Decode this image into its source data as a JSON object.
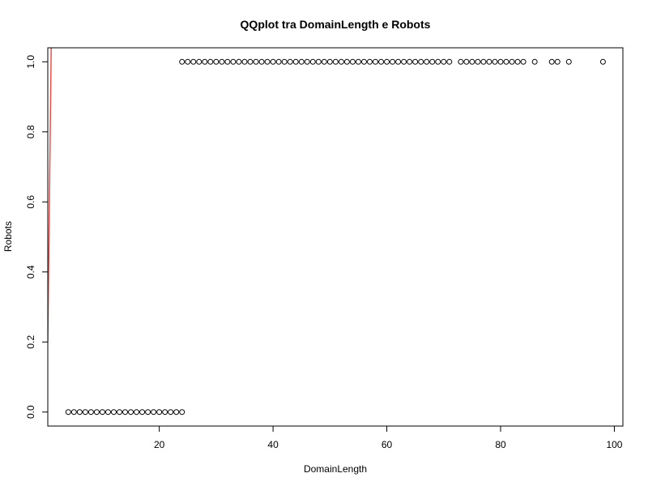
{
  "chart_data": {
    "type": "scatter",
    "title": "QQplot tra DomainLength e Robots",
    "xlabel": "DomainLength",
    "ylabel": "Robots",
    "xlim": [
      0.4,
      101.5
    ],
    "ylim": [
      -0.04,
      1.04
    ],
    "x_ticks": [
      20,
      40,
      60,
      80,
      100
    ],
    "x_tick_labels": [
      "20",
      "40",
      "60",
      "80",
      "100"
    ],
    "y_ticks": [
      0.0,
      0.2,
      0.4,
      0.6,
      0.8,
      1.0
    ],
    "y_tick_labels": [
      "0.0",
      "0.2",
      "0.4",
      "0.6",
      "0.8",
      "1.0"
    ],
    "grid": false,
    "legend": "none",
    "series": [
      {
        "marker": "open-circle",
        "color": "#000000",
        "points": [
          {
            "x": 4,
            "y": 0
          },
          {
            "x": 5,
            "y": 0
          },
          {
            "x": 6,
            "y": 0
          },
          {
            "x": 7,
            "y": 0
          },
          {
            "x": 8,
            "y": 0
          },
          {
            "x": 9,
            "y": 0
          },
          {
            "x": 10,
            "y": 0
          },
          {
            "x": 11,
            "y": 0
          },
          {
            "x": 12,
            "y": 0
          },
          {
            "x": 13,
            "y": 0
          },
          {
            "x": 14,
            "y": 0
          },
          {
            "x": 15,
            "y": 0
          },
          {
            "x": 16,
            "y": 0
          },
          {
            "x": 17,
            "y": 0
          },
          {
            "x": 18,
            "y": 0
          },
          {
            "x": 19,
            "y": 0
          },
          {
            "x": 20,
            "y": 0
          },
          {
            "x": 21,
            "y": 0
          },
          {
            "x": 22,
            "y": 0
          },
          {
            "x": 23,
            "y": 0
          },
          {
            "x": 24,
            "y": 0
          },
          {
            "x": 24,
            "y": 1
          },
          {
            "x": 25,
            "y": 1
          },
          {
            "x": 26,
            "y": 1
          },
          {
            "x": 27,
            "y": 1
          },
          {
            "x": 28,
            "y": 1
          },
          {
            "x": 29,
            "y": 1
          },
          {
            "x": 30,
            "y": 1
          },
          {
            "x": 31,
            "y": 1
          },
          {
            "x": 32,
            "y": 1
          },
          {
            "x": 33,
            "y": 1
          },
          {
            "x": 34,
            "y": 1
          },
          {
            "x": 35,
            "y": 1
          },
          {
            "x": 36,
            "y": 1
          },
          {
            "x": 37,
            "y": 1
          },
          {
            "x": 38,
            "y": 1
          },
          {
            "x": 39,
            "y": 1
          },
          {
            "x": 40,
            "y": 1
          },
          {
            "x": 41,
            "y": 1
          },
          {
            "x": 42,
            "y": 1
          },
          {
            "x": 43,
            "y": 1
          },
          {
            "x": 44,
            "y": 1
          },
          {
            "x": 45,
            "y": 1
          },
          {
            "x": 46,
            "y": 1
          },
          {
            "x": 47,
            "y": 1
          },
          {
            "x": 48,
            "y": 1
          },
          {
            "x": 49,
            "y": 1
          },
          {
            "x": 50,
            "y": 1
          },
          {
            "x": 51,
            "y": 1
          },
          {
            "x": 52,
            "y": 1
          },
          {
            "x": 53,
            "y": 1
          },
          {
            "x": 54,
            "y": 1
          },
          {
            "x": 55,
            "y": 1
          },
          {
            "x": 56,
            "y": 1
          },
          {
            "x": 57,
            "y": 1
          },
          {
            "x": 58,
            "y": 1
          },
          {
            "x": 59,
            "y": 1
          },
          {
            "x": 60,
            "y": 1
          },
          {
            "x": 61,
            "y": 1
          },
          {
            "x": 62,
            "y": 1
          },
          {
            "x": 63,
            "y": 1
          },
          {
            "x": 64,
            "y": 1
          },
          {
            "x": 65,
            "y": 1
          },
          {
            "x": 66,
            "y": 1
          },
          {
            "x": 67,
            "y": 1
          },
          {
            "x": 68,
            "y": 1
          },
          {
            "x": 69,
            "y": 1
          },
          {
            "x": 70,
            "y": 1
          },
          {
            "x": 71,
            "y": 1
          },
          {
            "x": 73,
            "y": 1
          },
          {
            "x": 74,
            "y": 1
          },
          {
            "x": 75,
            "y": 1
          },
          {
            "x": 76,
            "y": 1
          },
          {
            "x": 77,
            "y": 1
          },
          {
            "x": 78,
            "y": 1
          },
          {
            "x": 79,
            "y": 1
          },
          {
            "x": 80,
            "y": 1
          },
          {
            "x": 81,
            "y": 1
          },
          {
            "x": 82,
            "y": 1
          },
          {
            "x": 83,
            "y": 1
          },
          {
            "x": 84,
            "y": 1
          },
          {
            "x": 86,
            "y": 1
          },
          {
            "x": 89,
            "y": 1
          },
          {
            "x": 90,
            "y": 1
          },
          {
            "x": 92,
            "y": 1
          },
          {
            "x": 98,
            "y": 1
          }
        ]
      }
    ],
    "reference_line": {
      "color": "#e8504a",
      "points": [
        {
          "x": 0.4,
          "y": 0.2
        },
        {
          "x": 1.0,
          "y": 1.04
        }
      ]
    },
    "colors": {
      "points": "#000000",
      "reference_line": "#e8504a",
      "frame": "#000000",
      "background": "#ffffff"
    }
  }
}
